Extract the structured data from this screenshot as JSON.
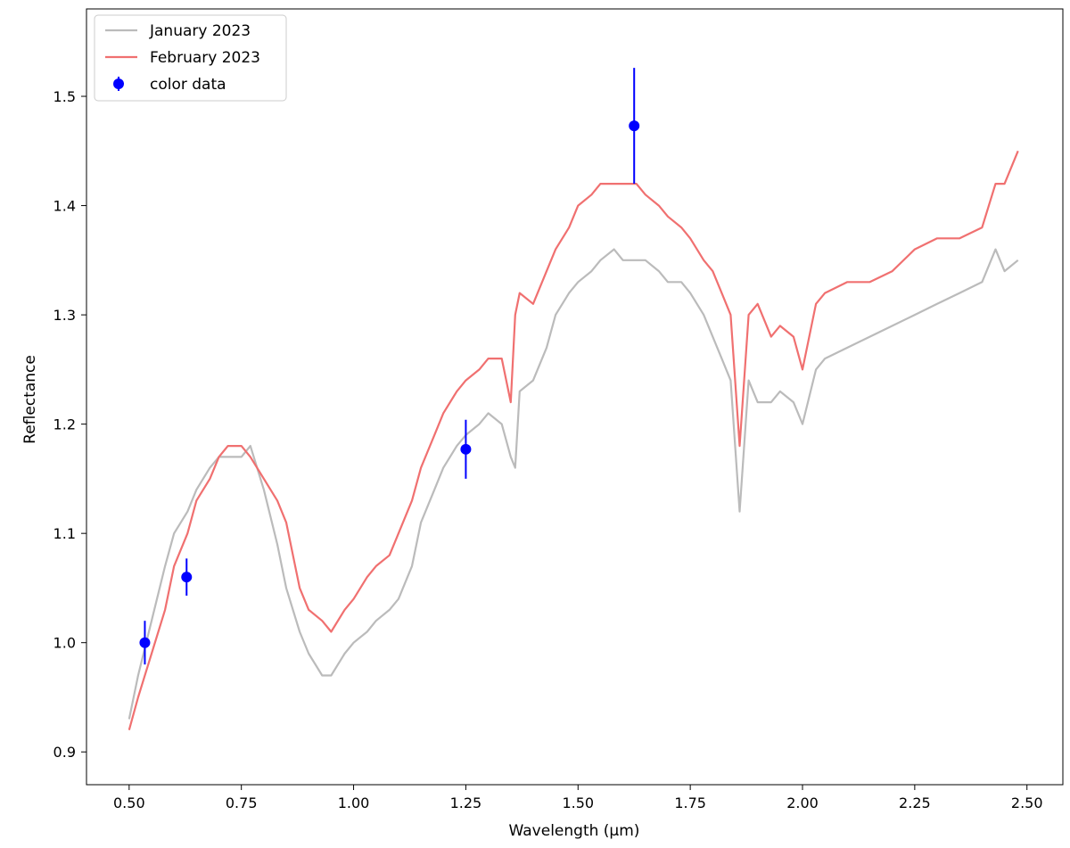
{
  "chart_data": {
    "type": "line",
    "title": "",
    "xlabel": "Wavelength (µm)",
    "ylabel": "Reflectance",
    "xlim": [
      0.405,
      2.58
    ],
    "ylim": [
      0.87,
      1.58
    ],
    "xticks": [
      "0.50",
      "0.75",
      "1.00",
      "1.25",
      "1.50",
      "1.75",
      "2.00",
      "2.25",
      "2.50"
    ],
    "yticks": [
      "0.9",
      "1.0",
      "1.1",
      "1.2",
      "1.3",
      "1.4",
      "1.5"
    ],
    "grid": false,
    "legend_position": "top-left",
    "series": [
      {
        "name": "January 2023",
        "color": "#bbbbbb",
        "kind": "line",
        "x": [
          0.5,
          0.52,
          0.55,
          0.58,
          0.6,
          0.63,
          0.65,
          0.68,
          0.7,
          0.72,
          0.75,
          0.77,
          0.8,
          0.83,
          0.85,
          0.88,
          0.9,
          0.93,
          0.95,
          0.98,
          1.0,
          1.03,
          1.05,
          1.08,
          1.1,
          1.13,
          1.15,
          1.18,
          1.2,
          1.23,
          1.25,
          1.28,
          1.3,
          1.33,
          1.35,
          1.36,
          1.37,
          1.4,
          1.43,
          1.45,
          1.48,
          1.5,
          1.53,
          1.55,
          1.58,
          1.6,
          1.63,
          1.65,
          1.68,
          1.7,
          1.73,
          1.75,
          1.78,
          1.8,
          1.82,
          1.84,
          1.86,
          1.88,
          1.9,
          1.93,
          1.95,
          1.98,
          2.0,
          2.03,
          2.05,
          2.1,
          2.15,
          2.2,
          2.25,
          2.3,
          2.35,
          2.4,
          2.43,
          2.45,
          2.48
        ],
        "y": [
          0.93,
          0.97,
          1.02,
          1.07,
          1.1,
          1.12,
          1.14,
          1.16,
          1.17,
          1.17,
          1.17,
          1.18,
          1.14,
          1.09,
          1.05,
          1.01,
          0.99,
          0.97,
          0.97,
          0.99,
          1.0,
          1.01,
          1.02,
          1.03,
          1.04,
          1.07,
          1.11,
          1.14,
          1.16,
          1.18,
          1.19,
          1.2,
          1.21,
          1.2,
          1.17,
          1.16,
          1.23,
          1.24,
          1.27,
          1.3,
          1.32,
          1.33,
          1.34,
          1.35,
          1.36,
          1.35,
          1.35,
          1.35,
          1.34,
          1.33,
          1.33,
          1.32,
          1.3,
          1.28,
          1.26,
          1.24,
          1.12,
          1.24,
          1.22,
          1.22,
          1.23,
          1.22,
          1.2,
          1.25,
          1.26,
          1.27,
          1.28,
          1.29,
          1.3,
          1.31,
          1.32,
          1.33,
          1.36,
          1.34,
          1.35
        ]
      },
      {
        "name": "February 2023",
        "color": "#f07070",
        "kind": "line",
        "x": [
          0.5,
          0.52,
          0.55,
          0.58,
          0.6,
          0.63,
          0.65,
          0.68,
          0.7,
          0.72,
          0.75,
          0.77,
          0.8,
          0.83,
          0.85,
          0.88,
          0.9,
          0.93,
          0.95,
          0.98,
          1.0,
          1.03,
          1.05,
          1.08,
          1.1,
          1.13,
          1.15,
          1.18,
          1.2,
          1.23,
          1.25,
          1.28,
          1.3,
          1.33,
          1.35,
          1.36,
          1.37,
          1.4,
          1.43,
          1.45,
          1.48,
          1.5,
          1.53,
          1.55,
          1.58,
          1.6,
          1.63,
          1.65,
          1.68,
          1.7,
          1.73,
          1.75,
          1.78,
          1.8,
          1.82,
          1.84,
          1.86,
          1.88,
          1.9,
          1.93,
          1.95,
          1.98,
          2.0,
          2.03,
          2.05,
          2.1,
          2.15,
          2.2,
          2.25,
          2.3,
          2.35,
          2.4,
          2.43,
          2.45,
          2.48
        ],
        "y": [
          0.92,
          0.95,
          0.99,
          1.03,
          1.07,
          1.1,
          1.13,
          1.15,
          1.17,
          1.18,
          1.18,
          1.17,
          1.15,
          1.13,
          1.11,
          1.05,
          1.03,
          1.02,
          1.01,
          1.03,
          1.04,
          1.06,
          1.07,
          1.08,
          1.1,
          1.13,
          1.16,
          1.19,
          1.21,
          1.23,
          1.24,
          1.25,
          1.26,
          1.26,
          1.22,
          1.3,
          1.32,
          1.31,
          1.34,
          1.36,
          1.38,
          1.4,
          1.41,
          1.42,
          1.42,
          1.42,
          1.42,
          1.41,
          1.4,
          1.39,
          1.38,
          1.37,
          1.35,
          1.34,
          1.32,
          1.3,
          1.18,
          1.3,
          1.31,
          1.28,
          1.29,
          1.28,
          1.25,
          1.31,
          1.32,
          1.33,
          1.33,
          1.34,
          1.36,
          1.37,
          1.37,
          1.38,
          1.42,
          1.42,
          1.45
        ]
      }
    ],
    "points": {
      "name": "color data",
      "color": "#0000ff",
      "kind": "errorbar",
      "x": [
        0.535,
        0.628,
        1.25,
        1.625
      ],
      "y": [
        1.0,
        1.06,
        1.177,
        1.473
      ],
      "yerr": [
        0.02,
        0.017,
        0.027,
        0.053
      ]
    }
  }
}
